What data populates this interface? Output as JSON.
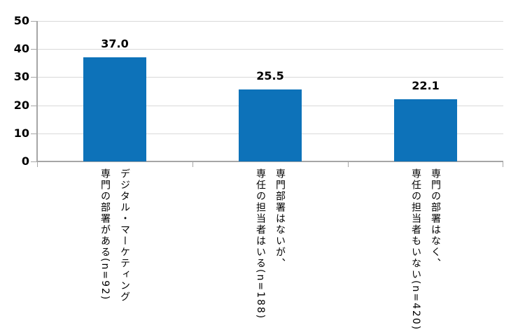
{
  "chart_data": {
    "type": "bar",
    "title": "",
    "xlabel": "",
    "ylabel": "",
    "categories": [
      "デジタル・マーケティング\n専門の部署がある(n=92)",
      "専門部署はないが、\n専任の担当者はいる(n=188)",
      "専門の部署はなく、\n専任の担当者もいない(n=420)"
    ],
    "values": [
      37.0,
      25.5,
      22.1
    ],
    "value_labels": [
      "37.0",
      "25.5",
      "22.1"
    ],
    "ylim": [
      0,
      50
    ],
    "yticks": [
      0,
      10,
      20,
      30,
      40,
      50
    ],
    "grid": true,
    "legend": "none",
    "colors": {
      "bar": "#0D72B9",
      "gridline": "#D9D9D9",
      "axis": "#A6A6A6",
      "text": "#000000",
      "background": "#FFFFFF"
    }
  }
}
